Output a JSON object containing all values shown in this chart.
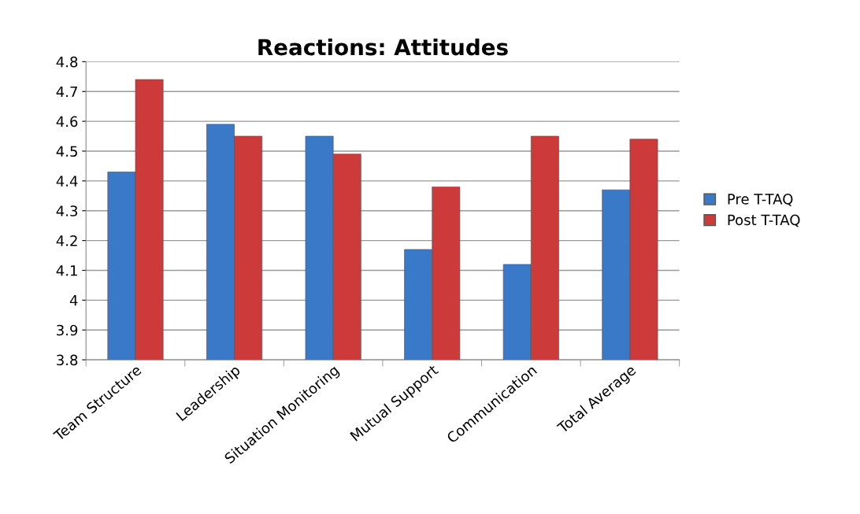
{
  "chart_data": {
    "type": "bar",
    "title": "Reactions: Attitudes",
    "categories": [
      "Team Structure",
      "Leadership",
      "Situation Monitoring",
      "Mutual Support",
      "Communication",
      "Total Average"
    ],
    "series": [
      {
        "name": "Pre T-TAQ",
        "color": "#3a78c8",
        "values": [
          4.43,
          4.59,
          4.55,
          4.17,
          4.12,
          4.37
        ]
      },
      {
        "name": "Post T-TAQ",
        "color": "#cc3b3a",
        "values": [
          4.74,
          4.55,
          4.49,
          4.38,
          4.55,
          4.54
        ]
      }
    ],
    "ylim": [
      3.8,
      4.8
    ],
    "yticks": [
      3.8,
      3.9,
      4,
      4.1,
      4.2,
      4.3,
      4.4,
      4.5,
      4.6,
      4.7,
      4.8
    ],
    "grid": "y",
    "legend": "right"
  }
}
